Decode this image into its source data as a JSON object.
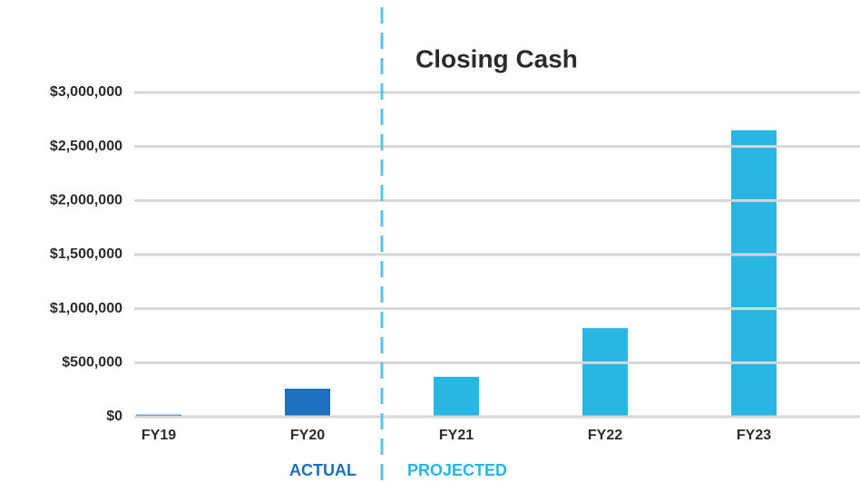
{
  "chart_data": {
    "type": "bar",
    "title": "Closing Cash",
    "categories": [
      "FY19",
      "FY20",
      "FY21",
      "FY22",
      "FY23"
    ],
    "values": [
      20000,
      260000,
      370000,
      820000,
      2650000
    ],
    "colors": [
      "#1f6fbf",
      "#1f6fbf",
      "#29b6e3",
      "#29b6e3",
      "#29b6e3"
    ],
    "ylim": [
      0,
      3000000
    ],
    "yticks": [
      {
        "value": 0,
        "label": "$0"
      },
      {
        "value": 500000,
        "label": "$500,000"
      },
      {
        "value": 1000000,
        "label": "$1,000,000"
      },
      {
        "value": 1500000,
        "label": "$1,500,000"
      },
      {
        "value": 2000000,
        "label": "$2,000,000"
      },
      {
        "value": 2500000,
        "label": "$2,500,000"
      },
      {
        "value": 3000000,
        "label": "$3,000,000"
      }
    ],
    "grid": true,
    "annotations": [
      {
        "text": "ACTUAL",
        "color": "#1f6fbf"
      },
      {
        "text": "PROJECTED",
        "color": "#29b6e3"
      }
    ]
  }
}
